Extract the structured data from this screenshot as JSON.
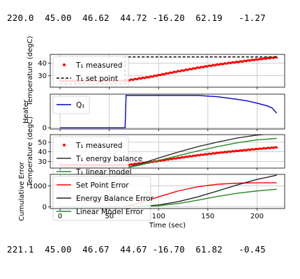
{
  "output": {
    "top_line": "220.0  45.00  46.62  44.72 -16.20  62.19   -1.27",
    "bottom_line": "221.1  45.00  46.67  44.67 -16.70  61.82   -0.45"
  },
  "chart_data": [
    {
      "type": "line",
      "ylabel": "Temperature (degC)",
      "xlim": [
        -10,
        228
      ],
      "ylim": [
        21,
        47
      ],
      "yticks": [
        30,
        40
      ],
      "grid": true,
      "legend_position": "upper-left",
      "series": [
        {
          "name": "T₁ measured",
          "style": "points",
          "color": "#ff0000",
          "x": [
            0,
            20,
            40,
            60,
            67,
            70,
            80,
            90,
            100,
            110,
            120,
            130,
            140,
            150,
            160,
            170,
            180,
            190,
            200,
            210,
            220
          ],
          "y": [
            26.0,
            26.0,
            26.0,
            26.0,
            26.1,
            26.6,
            27.8,
            29.0,
            30.5,
            32.1,
            33.6,
            35.0,
            36.4,
            37.7,
            38.9,
            40.0,
            41.0,
            42.0,
            43.0,
            43.9,
            44.7
          ]
        },
        {
          "name": "T₁ set point",
          "style": "dashed",
          "color": "#000000",
          "x": [
            0,
            66,
            66,
            220
          ],
          "y": [
            23.5,
            23.5,
            45.0,
            45.0
          ]
        }
      ]
    },
    {
      "type": "line",
      "ylabel": "Heater",
      "xlim": [
        -10,
        228
      ],
      "ylim": [
        -4,
        104
      ],
      "yticks": [
        0
      ],
      "grid": true,
      "legend_position": "upper-left",
      "series": [
        {
          "name": "Q₁",
          "color": "#0000cc",
          "x": [
            0,
            66,
            67,
            140,
            150,
            160,
            170,
            180,
            190,
            200,
            210,
            215,
            220
          ],
          "y": [
            0,
            0,
            100,
            100,
            98,
            96,
            92,
            88,
            83,
            76,
            68,
            62,
            45
          ]
        }
      ]
    },
    {
      "type": "line",
      "ylabel": "Temperature (degC)",
      "xlim": [
        -10,
        228
      ],
      "ylim": [
        23,
        58
      ],
      "yticks": [
        30,
        40,
        50
      ],
      "grid": true,
      "legend_position": "upper-left",
      "series": [
        {
          "name": "T₁ measured",
          "style": "points",
          "color": "#ff0000",
          "x": [
            0,
            30,
            60,
            70,
            80,
            90,
            100,
            120,
            140,
            160,
            180,
            200,
            220
          ],
          "y": [
            26.0,
            26.0,
            26.0,
            26.5,
            27.8,
            29.0,
            30.5,
            33.6,
            36.4,
            38.9,
            41.0,
            43.0,
            44.7
          ]
        },
        {
          "name": "T₁ energy balance",
          "color": "#333333",
          "x": [
            0,
            60,
            70,
            80,
            100,
            120,
            140,
            160,
            180,
            200,
            220
          ],
          "y": [
            23.5,
            23.5,
            24.2,
            27.0,
            33.5,
            39.8,
            45.5,
            50.2,
            54.5,
            57.5,
            59.5
          ]
        },
        {
          "name": "T₁ linear model",
          "color": "#228b22",
          "x": [
            0,
            60,
            70,
            80,
            100,
            120,
            140,
            160,
            180,
            200,
            220
          ],
          "y": [
            23.5,
            23.5,
            24.0,
            25.8,
            31.0,
            36.0,
            41.0,
            45.5,
            49.5,
            52.5,
            54.0
          ]
        }
      ]
    },
    {
      "type": "line",
      "xlabel": "Time (sec)",
      "ylabel": "Cumulative Error",
      "xlim": [
        -10,
        228
      ],
      "ylim": [
        -80,
        1550
      ],
      "xticks": [
        0,
        50,
        100,
        150,
        200
      ],
      "yticks": [
        0,
        1000
      ],
      "grid": true,
      "legend_position": "upper-left",
      "series": [
        {
          "name": "Set Point Error",
          "color": "#ff0000",
          "x": [
            0,
            40,
            66,
            80,
            100,
            120,
            140,
            160,
            180,
            200,
            220
          ],
          "y": [
            0,
            0,
            0,
            180,
            480,
            760,
            960,
            1080,
            1130,
            1150,
            1150
          ]
        },
        {
          "name": "Energy Balance Error",
          "color": "#222222",
          "x": [
            0,
            60,
            70,
            80,
            100,
            120,
            140,
            160,
            180,
            200,
            220
          ],
          "y": [
            0,
            0,
            5,
            20,
            90,
            250,
            480,
            760,
            1050,
            1310,
            1510
          ]
        },
        {
          "name": "Linear Model Error",
          "color": "#228b22",
          "x": [
            0,
            60,
            70,
            80,
            100,
            120,
            140,
            160,
            180,
            200,
            220
          ],
          "y": [
            0,
            0,
            4,
            12,
            55,
            160,
            320,
            500,
            650,
            760,
            840
          ]
        }
      ]
    }
  ]
}
